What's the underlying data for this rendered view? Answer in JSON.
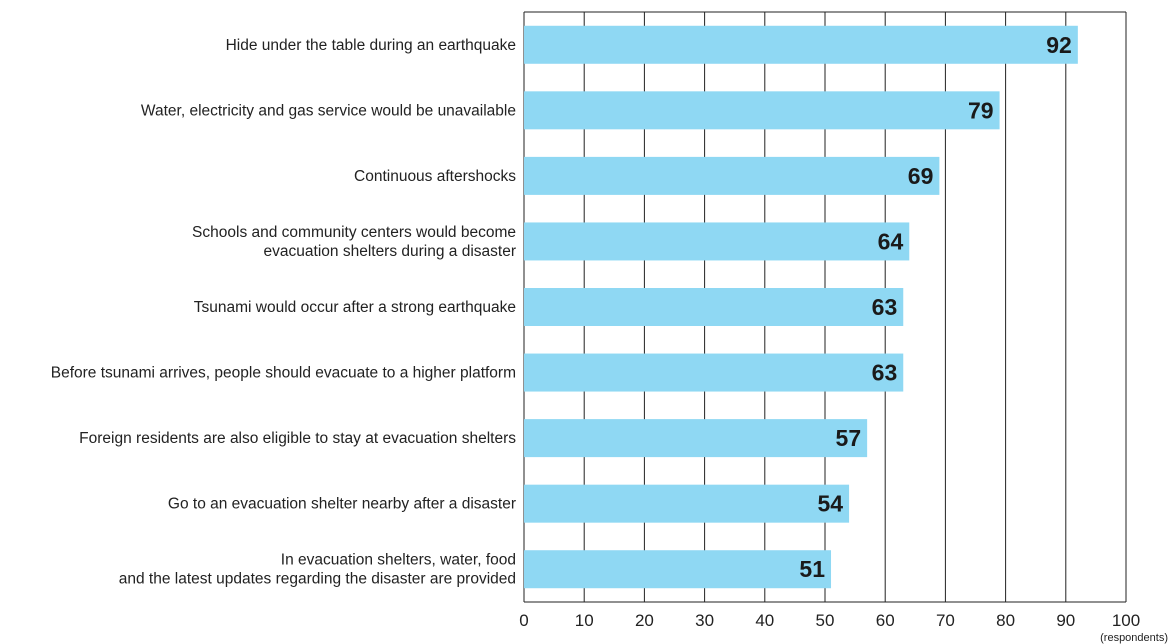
{
  "chart_data": {
    "type": "bar",
    "orientation": "horizontal",
    "categories": [
      [
        "Hide under the table during an earthquake"
      ],
      [
        "Water, electricity and gas service would be unavailable"
      ],
      [
        "Continuous aftershocks"
      ],
      [
        "Schools and community centers would become",
        "evacuation shelters during a disaster"
      ],
      [
        "Tsunami would occur after a strong earthquake"
      ],
      [
        "Before tsunami arrives, people should evacuate to a higher platform"
      ],
      [
        "Foreign residents are also eligible to stay at evacuation shelters"
      ],
      [
        "Go to an evacuation shelter nearby after a disaster"
      ],
      [
        "In evacuation shelters, water, food",
        "and the latest updates regarding the disaster are provided"
      ]
    ],
    "values": [
      92,
      79,
      69,
      64,
      63,
      63,
      57,
      54,
      51
    ],
    "data_labels": [
      "92",
      "79",
      "69",
      "64",
      "63",
      "63",
      "57",
      "54",
      "51"
    ],
    "xlim": [
      0,
      100
    ],
    "x_ticks": [
      "0",
      "10",
      "20",
      "30",
      "40",
      "50",
      "60",
      "70",
      "80",
      "90",
      "100"
    ],
    "unit_label": "(respondents)",
    "grid": "vertical",
    "legend": "none",
    "colors": {
      "bar": "#8fd8f3",
      "grid": "#222222",
      "text": "#222222"
    }
  }
}
